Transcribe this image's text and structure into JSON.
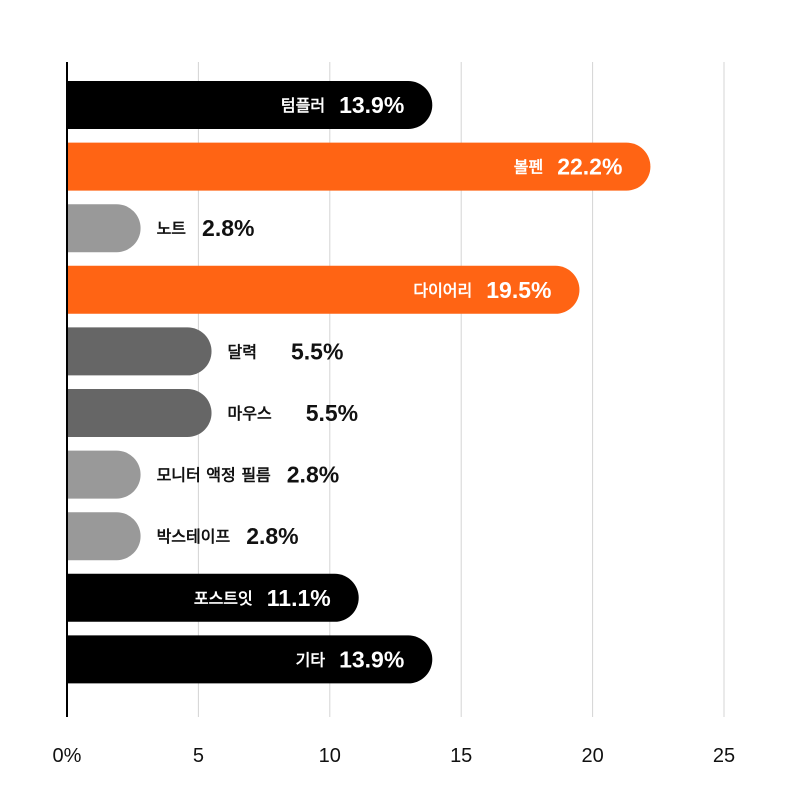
{
  "chart_data": {
    "type": "bar",
    "orientation": "horizontal",
    "categories": [
      "텀플러",
      "볼펜",
      "노트",
      "다이어리",
      "달력",
      "마우스",
      "모니터 액정 필름",
      "박스테이프",
      "포스트잇",
      "기타"
    ],
    "values": [
      13.9,
      22.2,
      2.8,
      19.5,
      5.5,
      5.5,
      2.8,
      2.8,
      11.1,
      13.9
    ],
    "value_labels": [
      "13.9%",
      "22.2%",
      "2.8%",
      "19.5%",
      "5.5%",
      "5.5%",
      "2.8%",
      "2.8%",
      "11.1%",
      "13.9%"
    ],
    "bar_colors": [
      "#000000",
      "#ff6414",
      "#999999",
      "#ff6414",
      "#666666",
      "#666666",
      "#999999",
      "#999999",
      "#000000",
      "#000000"
    ],
    "xlim": [
      0,
      25
    ],
    "xticks": [
      0,
      5,
      10,
      15,
      20,
      25
    ],
    "xtick_labels": [
      "0%",
      "5",
      "10",
      "15",
      "20",
      "25"
    ],
    "grid": true,
    "title": "",
    "xlabel": "",
    "ylabel": ""
  }
}
